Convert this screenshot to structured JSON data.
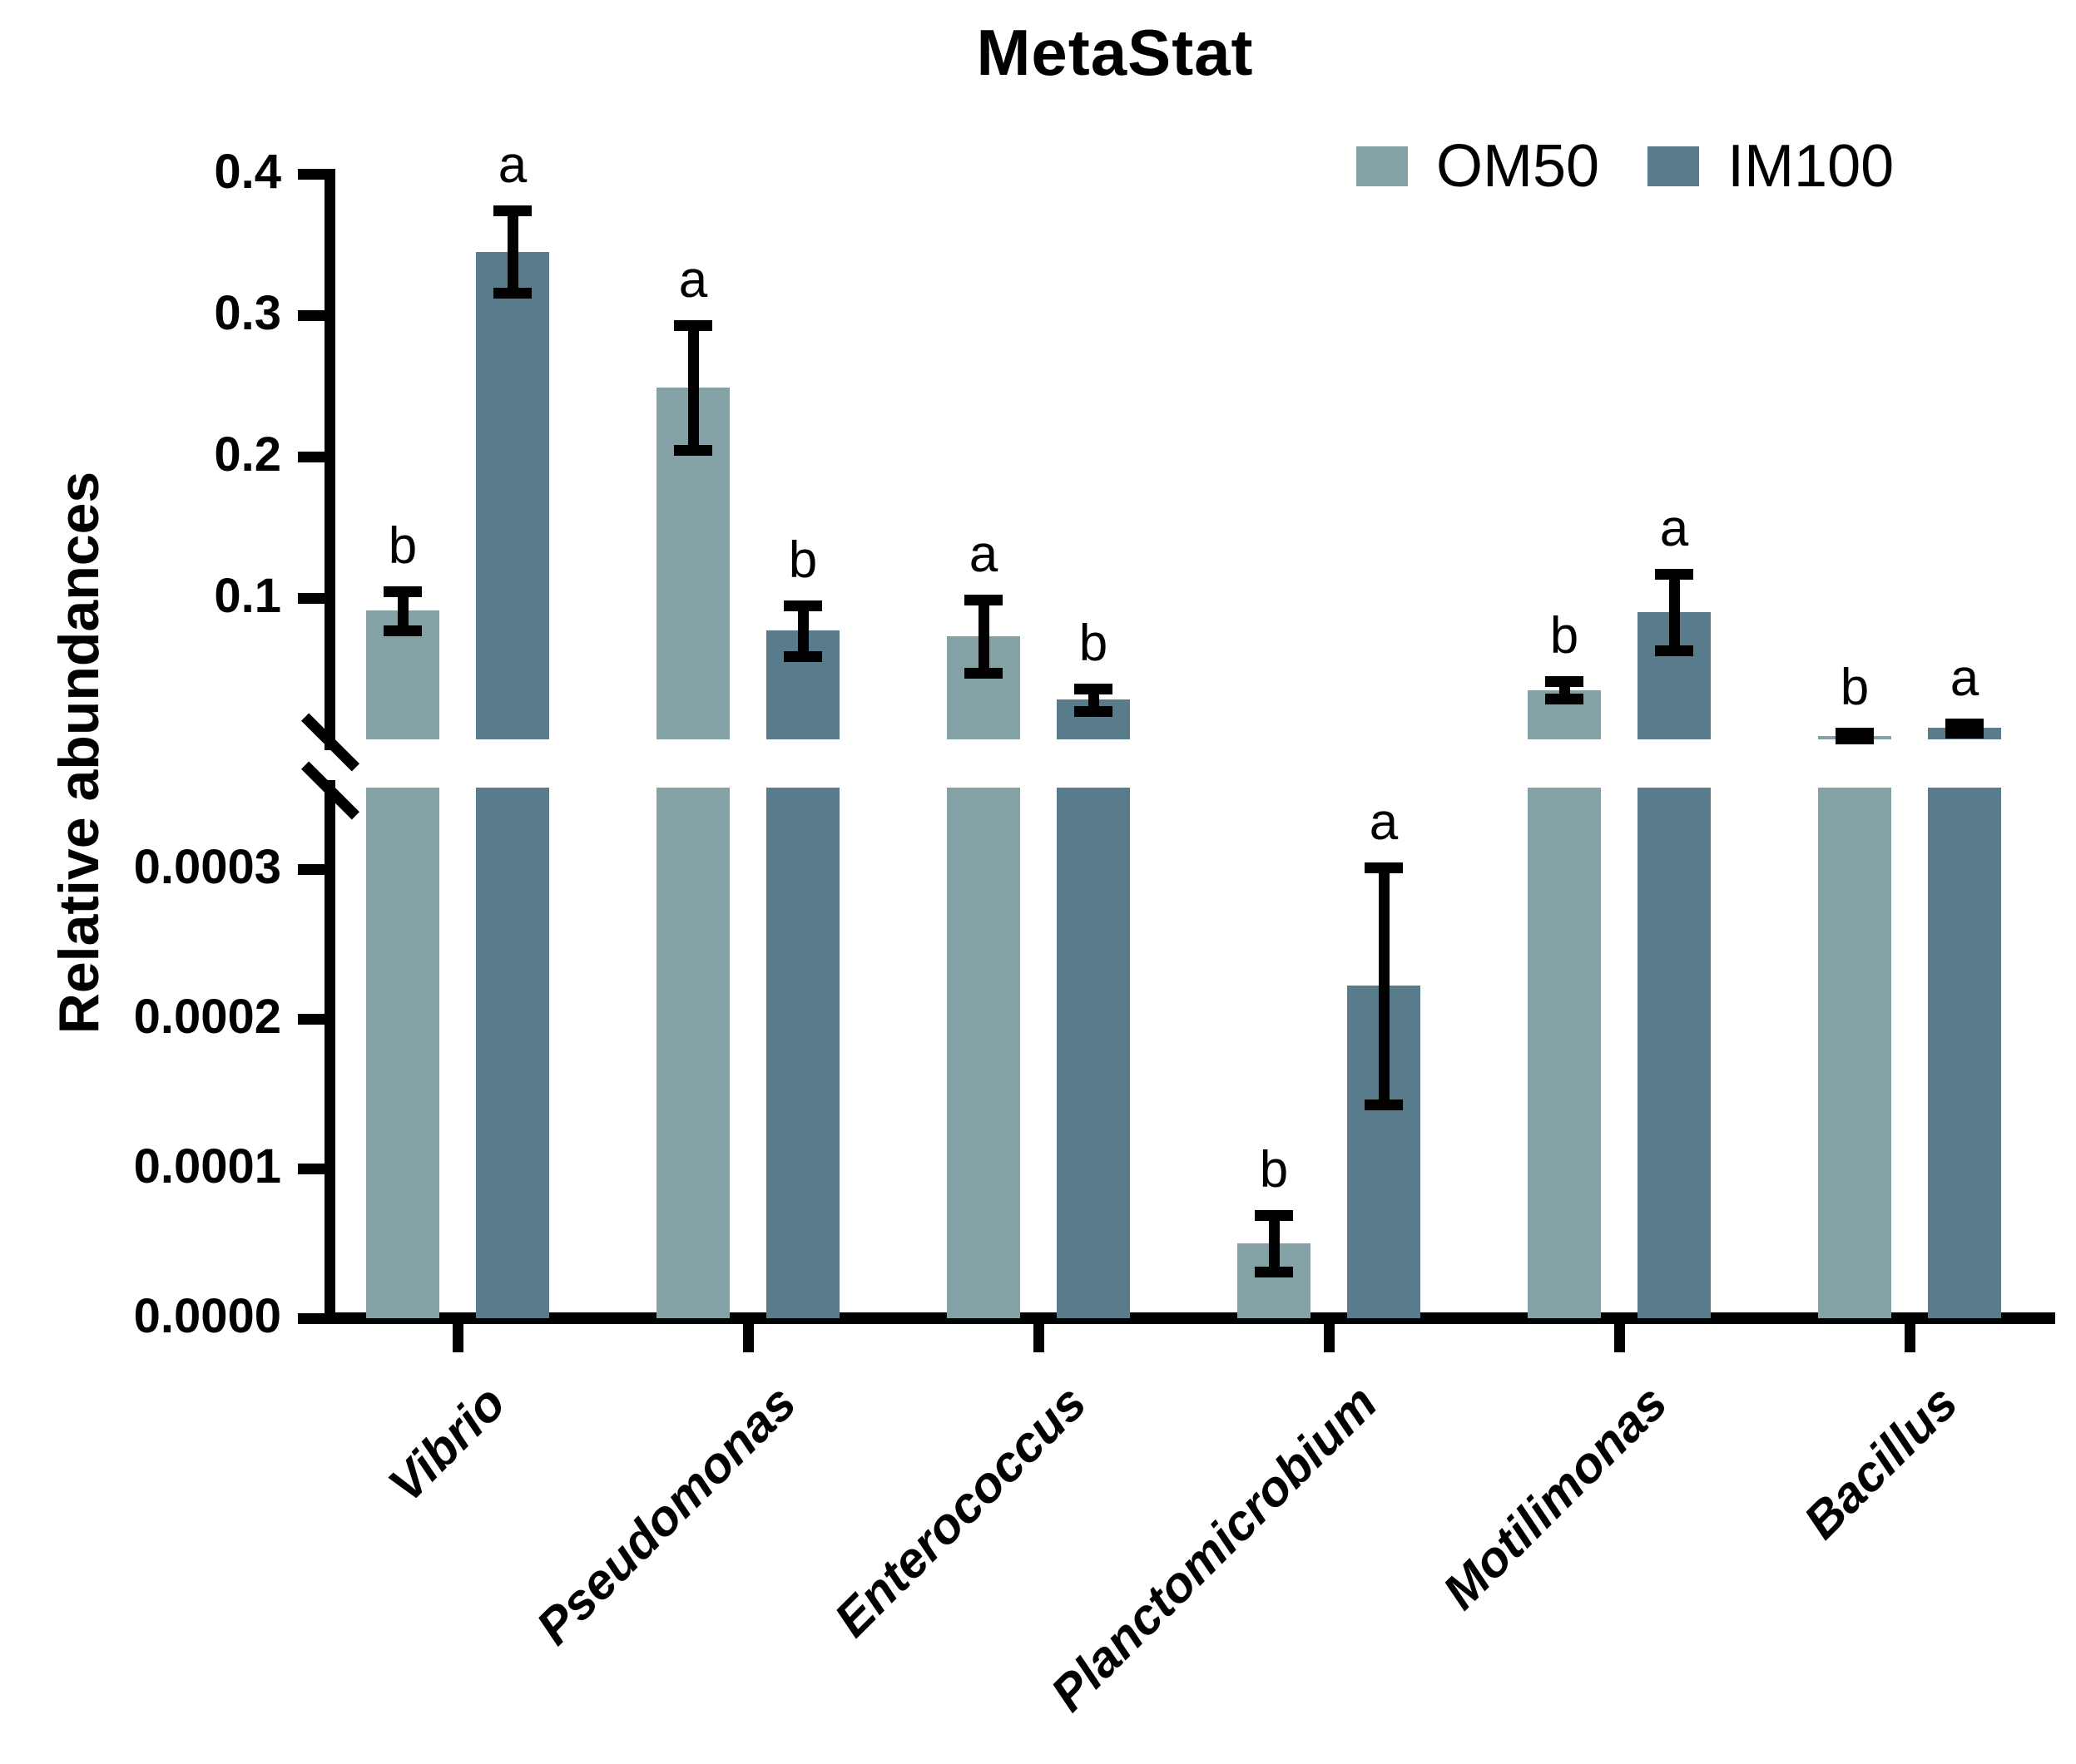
{
  "title": "MetaStat",
  "y_axis": {
    "label": "Relative abundances",
    "upper_ticks": [
      {
        "value": 0.4,
        "label": "0.4"
      },
      {
        "value": 0.3,
        "label": "0.3"
      },
      {
        "value": 0.2,
        "label": "0.2"
      },
      {
        "value": 0.1,
        "label": "0.1"
      }
    ],
    "lower_ticks": [
      {
        "value": 0.0003,
        "label": "0.0003"
      },
      {
        "value": 0.0002,
        "label": "0.0002"
      },
      {
        "value": 0.0001,
        "label": "0.0001"
      },
      {
        "value": 0.0,
        "label": "0.0000"
      }
    ]
  },
  "legend": {
    "items": [
      {
        "label": "OM50",
        "color": "#84A1A6"
      },
      {
        "label": "IM100",
        "color": "#587C8C"
      }
    ]
  },
  "chart_data": {
    "type": "bar",
    "title": "MetaStat",
    "xlabel": "",
    "ylabel": "Relative abundances",
    "grid": false,
    "legend_position": "top-right",
    "axis_break": true,
    "upper_panel_range": [
      0,
      0.4
    ],
    "lower_panel_range": [
      0,
      0.00035
    ],
    "categories": [
      "Vibrio",
      "Pseudomonas",
      "Enterococcus",
      "Planctomicrobium",
      "Motilimonas",
      "Bacillus"
    ],
    "category_panels": [
      "upper",
      "upper",
      "upper",
      "lower",
      "upper",
      "upper"
    ],
    "series": [
      {
        "name": "OM50",
        "color": "#84A1A6",
        "values": [
          0.091,
          0.249,
          0.073,
          5e-05,
          0.035,
          0.0025
        ],
        "errors": [
          0.014,
          0.044,
          0.026,
          1.9e-05,
          0.006,
          0.002
        ],
        "letters": [
          "b",
          "a",
          "a",
          "b",
          "b",
          "b"
        ]
      },
      {
        "name": "IM100",
        "color": "#587C8C",
        "values": [
          0.345,
          0.077,
          0.028,
          0.000222,
          0.09,
          0.008
        ],
        "errors": [
          0.029,
          0.018,
          0.008,
          7.9e-05,
          0.027,
          0.003
        ],
        "letters": [
          "a",
          "b",
          "b",
          "a",
          "a",
          "a"
        ]
      }
    ]
  }
}
